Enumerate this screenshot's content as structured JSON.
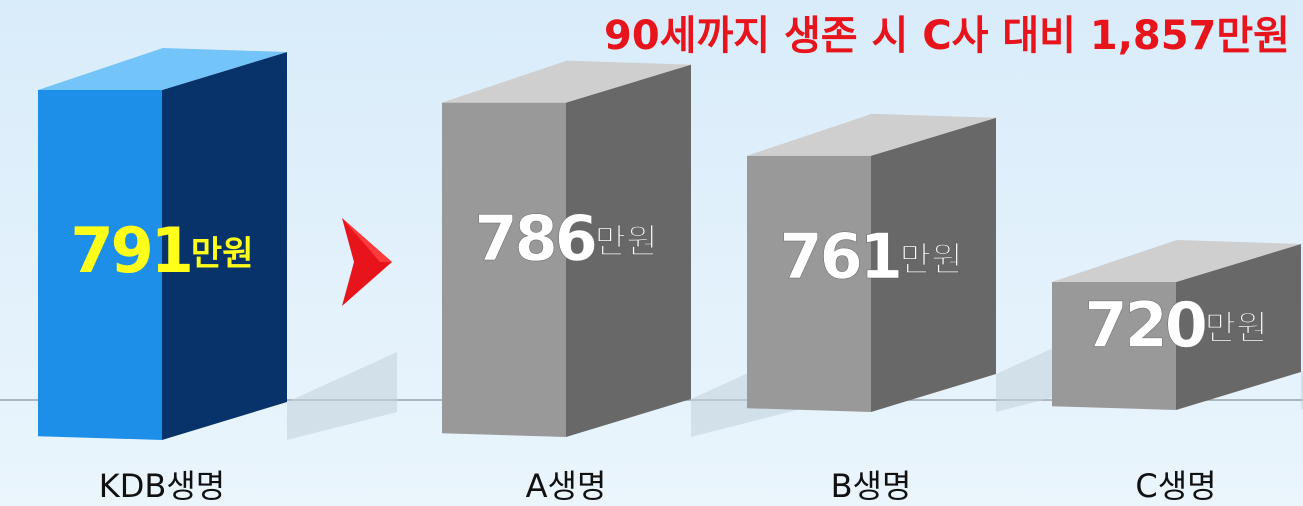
{
  "chart_data": {
    "type": "bar",
    "title": "90세까지 생존 시 C사 대비 1,857만원",
    "categories": [
      "KDB생명",
      "A생명",
      "B생명",
      "C생명"
    ],
    "values": [
      791,
      786,
      761,
      720
    ],
    "value_labels": [
      "791만원",
      "786만원",
      "761만원",
      "720만원"
    ],
    "colors": [
      "#1e8fe8",
      "#999999",
      "#999999",
      "#999999"
    ],
    "label_colors": [
      "#ffff1a",
      "#ffffff",
      "#ffffff",
      "#ffffff"
    ]
  }
}
